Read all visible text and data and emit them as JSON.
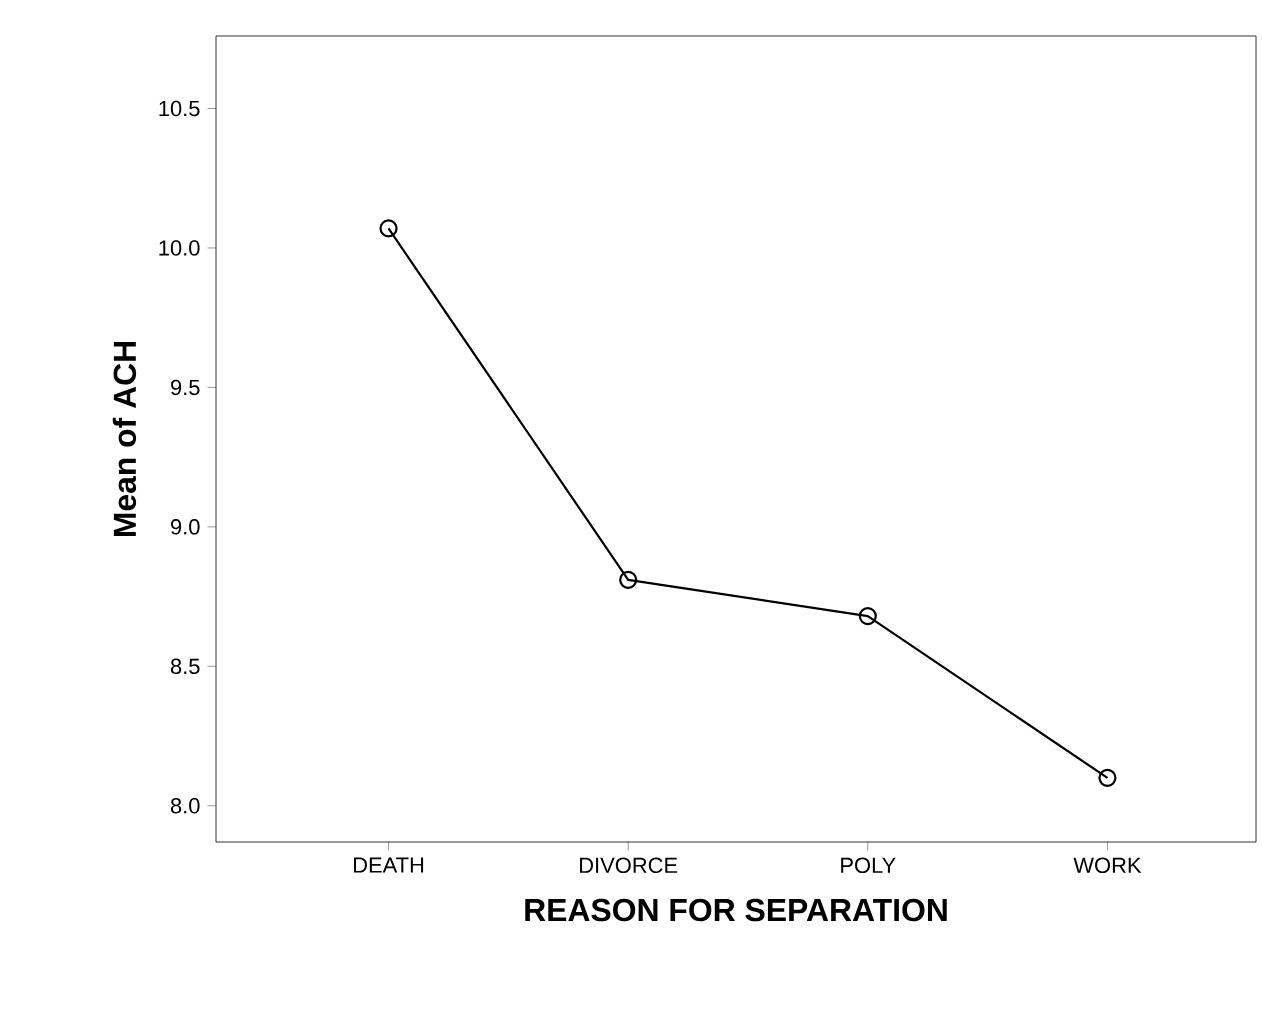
{
  "chart_data": {
    "type": "line",
    "xlabel": "REASON FOR SEPARATION",
    "ylabel": "Mean of ACH",
    "categories": [
      "DEATH",
      "DIVORCE",
      "POLY",
      "WORK"
    ],
    "values": [
      10.07,
      8.81,
      8.68,
      8.1
    ],
    "color": "#000000",
    "marker": "circle",
    "line_style": "solid",
    "ylim": [
      7.87,
      10.76
    ],
    "yticks": [
      {
        "value": 8.0,
        "label": "8.0"
      },
      {
        "value": 8.5,
        "label": "8.5"
      },
      {
        "value": 9.0,
        "label": "9.0"
      },
      {
        "value": 9.5,
        "label": "9.5"
      },
      {
        "value": 10.0,
        "label": "10.0"
      },
      {
        "value": 10.5,
        "label": "10.5"
      }
    ],
    "grid": false
  }
}
